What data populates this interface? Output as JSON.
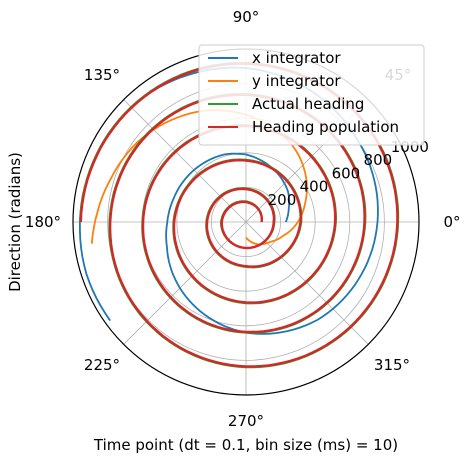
{
  "chart_data": {
    "type": "line",
    "projection": "polar",
    "xlabel": "Time point (dt = 0.1, bin size (ms) = 10)",
    "ylabel": "Direction (radians)",
    "angle_ticks": [
      "0°",
      "45°",
      "90°",
      "135°",
      "180°",
      "225°",
      "270°",
      "315°"
    ],
    "radial_ticks": [
      "200",
      "400",
      "600",
      "800",
      "1000"
    ],
    "rlim": [
      0,
      1000
    ],
    "grid": true,
    "legend_position": "top-right",
    "series": [
      {
        "name": "x integrator",
        "color": "#1f77b4",
        "points": [
          [
            0,
            230
          ],
          [
            18,
            260
          ],
          [
            36,
            300
          ],
          [
            54,
            330
          ],
          [
            72,
            360
          ],
          [
            90,
            390
          ],
          [
            108,
            410
          ],
          [
            126,
            420
          ],
          [
            144,
            430
          ],
          [
            162,
            440
          ],
          [
            180,
            455
          ],
          [
            198,
            480
          ],
          [
            216,
            520
          ],
          [
            234,
            560
          ],
          [
            252,
            600
          ],
          [
            270,
            640
          ],
          [
            288,
            670
          ],
          [
            306,
            700
          ],
          [
            324,
            720
          ],
          [
            342,
            740
          ],
          [
            360,
            760
          ],
          [
            378,
            780
          ],
          [
            396,
            800
          ],
          [
            414,
            830
          ],
          [
            432,
            860
          ],
          [
            450,
            890
          ],
          [
            468,
            910
          ],
          [
            486,
            930
          ],
          [
            504,
            940
          ],
          [
            522,
            950
          ],
          [
            540,
            960
          ],
          [
            558,
            970
          ],
          [
            576,
            970
          ]
        ]
      },
      {
        "name": "y integrator",
        "color": "#ff7f0e",
        "points": [
          [
            270,
            90
          ],
          [
            280,
            110
          ],
          [
            300,
            150
          ],
          [
            320,
            180
          ],
          [
            340,
            230
          ],
          [
            360,
            300
          ],
          [
            378,
            360
          ],
          [
            396,
            430
          ],
          [
            414,
            500
          ],
          [
            432,
            560
          ],
          [
            450,
            620
          ],
          [
            468,
            680
          ],
          [
            486,
            730
          ],
          [
            504,
            780
          ],
          [
            522,
            820
          ],
          [
            536,
            860
          ],
          [
            548,
            900
          ]
        ]
      },
      {
        "name": "Actual heading",
        "color": "#2ca02c",
        "points": [
          [
            0,
            90
          ],
          [
            90,
            120
          ],
          [
            180,
            145
          ],
          [
            270,
            150
          ],
          [
            360,
            165
          ],
          [
            450,
            195
          ],
          [
            540,
            230
          ],
          [
            630,
            260
          ],
          [
            720,
            320
          ],
          [
            810,
            360
          ],
          [
            900,
            420
          ],
          [
            990,
            470
          ],
          [
            1080,
            520
          ],
          [
            1170,
            560
          ],
          [
            1260,
            600
          ],
          [
            1350,
            640
          ],
          [
            1440,
            690
          ],
          [
            1530,
            740
          ],
          [
            1620,
            790
          ],
          [
            1710,
            840
          ],
          [
            1800,
            880
          ],
          [
            1890,
            920
          ],
          [
            1980,
            960
          ]
        ]
      },
      {
        "name": "Heading population",
        "color": "#d62728",
        "points": [
          [
            0,
            90
          ],
          [
            90,
            115
          ],
          [
            180,
            140
          ],
          [
            270,
            150
          ],
          [
            360,
            160
          ],
          [
            450,
            190
          ],
          [
            540,
            225
          ],
          [
            630,
            255
          ],
          [
            720,
            315
          ],
          [
            810,
            355
          ],
          [
            900,
            415
          ],
          [
            990,
            465
          ],
          [
            1080,
            515
          ],
          [
            1170,
            555
          ],
          [
            1260,
            595
          ],
          [
            1350,
            635
          ],
          [
            1440,
            685
          ],
          [
            1530,
            735
          ],
          [
            1620,
            785
          ],
          [
            1710,
            835
          ],
          [
            1800,
            875
          ],
          [
            1890,
            915
          ],
          [
            1980,
            955
          ]
        ]
      }
    ]
  }
}
